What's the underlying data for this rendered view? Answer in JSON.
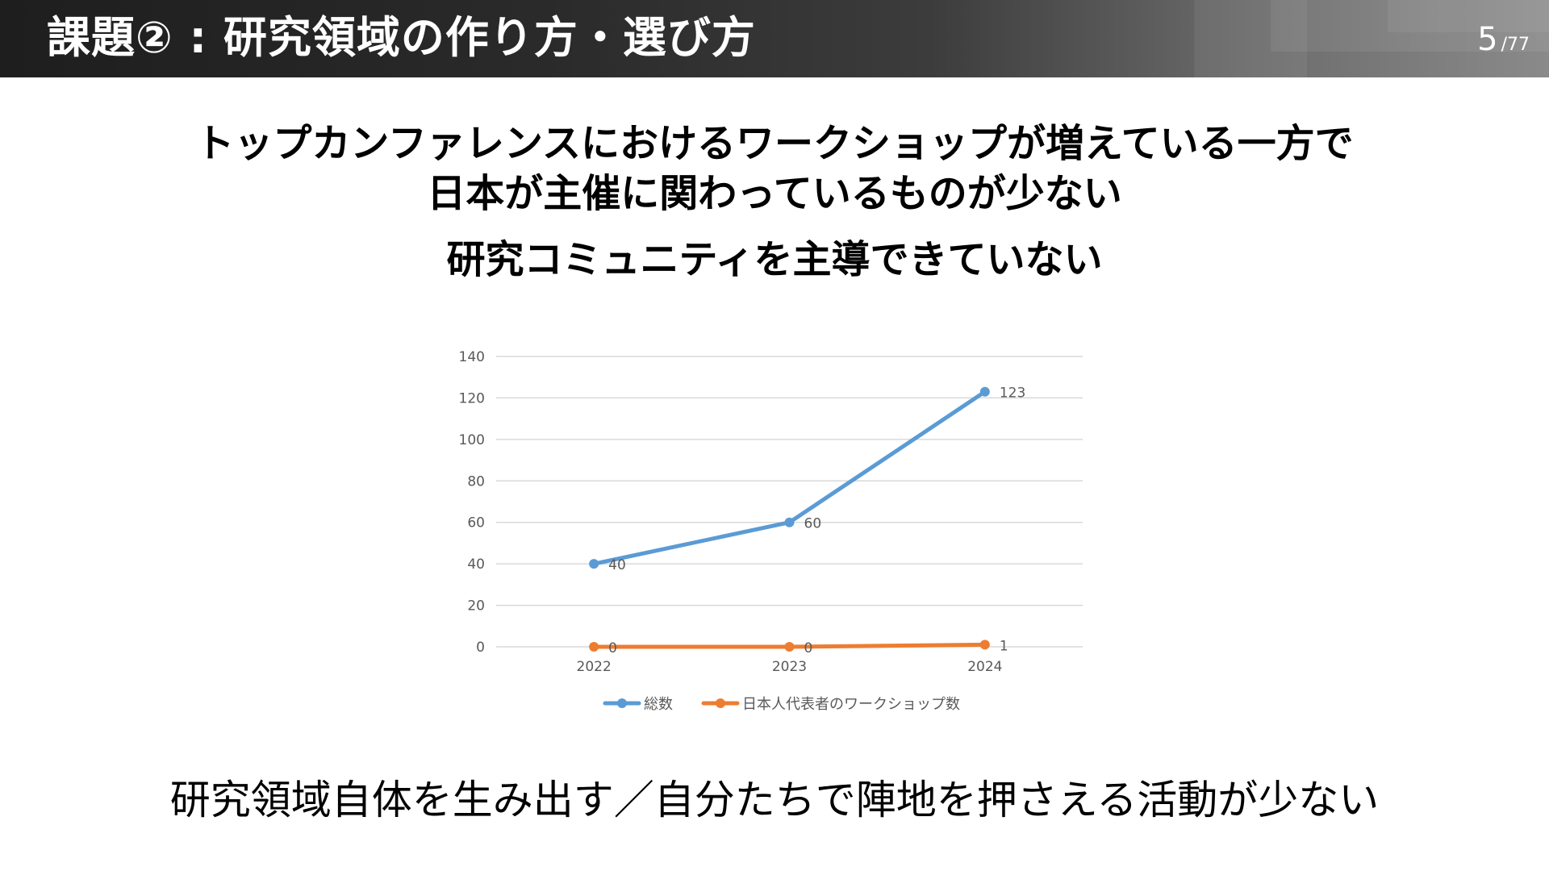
{
  "header": {
    "title": "課題② : 研究領域の作り方・選び方",
    "page_current": "5",
    "page_total": "/77"
  },
  "headline": {
    "line1": "トップカンファレンスにおけるワークショップが増えている一方で",
    "line2": "日本が主催に関わっているものが少ない",
    "line3": "研究コミュニティを主導できていない"
  },
  "footer": {
    "text": "研究領域自体を生み出す／自分たちで陣地を押さえる活動が少ない"
  },
  "colors": {
    "series_total": "#5b9bd5",
    "series_japan": "#ed7d31",
    "gridline": "#d9d9d9",
    "axis_text": "#595959"
  },
  "chart_data": {
    "type": "line",
    "categories": [
      "2022",
      "2023",
      "2024"
    ],
    "yticks": [
      "0",
      "20",
      "40",
      "60",
      "80",
      "100",
      "120",
      "140"
    ],
    "ylim": [
      0,
      140
    ],
    "grid": true,
    "legend_position": "bottom",
    "series": [
      {
        "name": "総数",
        "values": [
          40,
          60,
          123
        ],
        "labels": [
          "40",
          "60",
          "123"
        ]
      },
      {
        "name": "日本人代表者のワークショップ数",
        "values": [
          0,
          0,
          1
        ],
        "labels": [
          "0",
          "0",
          "1"
        ]
      }
    ]
  }
}
